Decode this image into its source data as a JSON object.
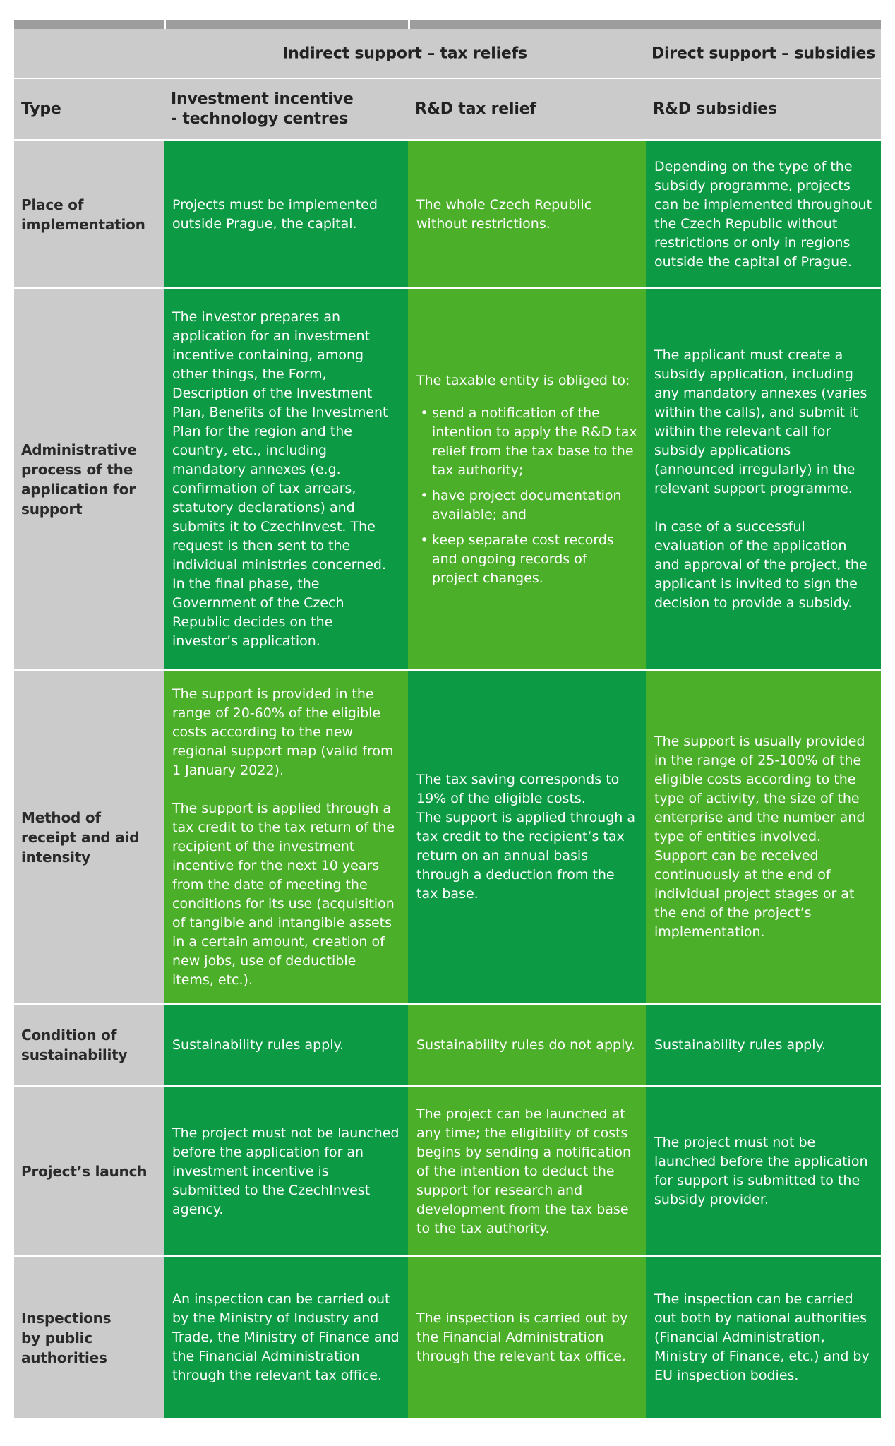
{
  "bullet_char": "•",
  "palette": {
    "dark_green": "#0C9B44",
    "light_green": "#4BAF2A",
    "top_bar_gray": "#9D9D9D",
    "header_gray": "#CBCBCB",
    "label_text_color": "#2A2A2A",
    "cell_text_color": "#FFFFFF"
  },
  "header": {
    "groups": {
      "indirect": "Indirect support – tax reliefs",
      "direct": "Direct support – subsidies"
    },
    "columns": {
      "type_label": "Type",
      "investment_incentive": "Investment incentive\n- technology centres",
      "rd_tax_relief": "R&D tax relief",
      "rd_subsidies": "R&D subsidies"
    }
  },
  "rows": [
    {
      "label": "Place of\nimplementation",
      "cells": [
        {
          "shade": "dark",
          "paragraphs": [
            "Projects must be implemented outside Prague, the capital."
          ]
        },
        {
          "shade": "light",
          "paragraphs": [
            "The whole Czech Republic without restrictions."
          ]
        },
        {
          "shade": "dark",
          "paragraphs": [
            "Depending on the type of the subsidy programme, projects can be implemented throughout the Czech Republic without restrictions or only in regions outside the capital of Prague."
          ]
        }
      ]
    },
    {
      "label": "Administrative\nprocess of the\napplication for\nsupport",
      "cells": [
        {
          "shade": "dark",
          "paragraphs": [
            "The investor prepares an application for an investment incentive containing, among other things, the Form, Description of the Investment Plan, Benefits of the Investment Plan for the region and the country, etc., including mandatory annexes (e.g. confirmation of tax arrears, statutory declarations) and submits it to CzechInvest. The request is then sent to the individual ministries concerned. In the final phase, the Government of the Czech Republic decides on the investor’s application."
          ]
        },
        {
          "shade": "light",
          "intro": "The taxable entity is obliged to:",
          "bullets": [
            "send a notification of the intention to apply the R&D tax relief from the tax base to the tax authority;",
            "have project documentation available; and",
            "keep separate cost records and ongoing records of project changes."
          ]
        },
        {
          "shade": "dark",
          "paragraphs": [
            "The applicant must create a subsidy application, including any mandatory annexes (varies within the calls), and submit it within the relevant call for subsidy applications (announced irregularly) in the relevant support programme.",
            "In case of a successful evaluation of the application and approval of the project, the applicant is invited to sign the decision to provide a subsidy."
          ]
        }
      ]
    },
    {
      "label": "Method of\nreceipt and aid\nintensity",
      "cells": [
        {
          "shade": "light",
          "paragraphs": [
            "The support is provided in the range of 20-60% of the eligible costs according to the new regional support map (valid from 1 January 2022).",
            "The support is applied through a tax credit to the tax return of the recipient of the investment incentive for the next 10 years from the date of meeting the conditions for its use (acquisition of tangible and intangible assets in a certain amount, creation of new jobs, use of deductible items, etc.)."
          ]
        },
        {
          "shade": "dark",
          "paragraphs": [
            "The tax saving corresponds to 19% of the eligible costs.\nThe support is applied through a tax credit to the recipient’s tax return on an annual basis through a deduction from the tax base."
          ]
        },
        {
          "shade": "light",
          "paragraphs": [
            "The support is usually provided in the range of 25-100% of the eligible costs according to the type of activity, the size of the enterprise and the number and type of entities involved. Support can be received continuously at the end of individual project stages or at the end of the project’s implementation."
          ]
        }
      ]
    },
    {
      "label": "Condition of\nsustainability",
      "cells": [
        {
          "shade": "dark",
          "paragraphs": [
            "Sustainability rules apply."
          ]
        },
        {
          "shade": "light",
          "paragraphs": [
            "Sustainability rules do not apply."
          ]
        },
        {
          "shade": "dark",
          "paragraphs": [
            "Sustainability rules apply."
          ]
        }
      ]
    },
    {
      "label": "Project’s launch",
      "cells": [
        {
          "shade": "dark",
          "paragraphs": [
            "The project must not be launched before the application for an investment incentive is submitted to the CzechInvest agency."
          ]
        },
        {
          "shade": "light",
          "paragraphs": [
            "The project can be launched at any time; the eligibility of costs begins by sending a notification of the intention to deduct the support for research and development from the tax base to the tax authority."
          ]
        },
        {
          "shade": "dark",
          "paragraphs": [
            "The project must not be launched before the application for support is submitted to the subsidy provider."
          ]
        }
      ]
    },
    {
      "label": "Inspections\nby public\nauthorities",
      "cells": [
        {
          "shade": "dark",
          "paragraphs": [
            "An inspection can be carried out by the Ministry of Industry and Trade, the Ministry of Finance and the Financial Administration through the relevant tax office."
          ]
        },
        {
          "shade": "light",
          "paragraphs": [
            "The inspection is carried out by the Financial Administration through the relevant tax office."
          ]
        },
        {
          "shade": "dark",
          "paragraphs": [
            "The inspection can be carried out both by national authorities (Financial Administration, Ministry of Finance, etc.) and by EU inspection bodies."
          ]
        }
      ]
    }
  ]
}
